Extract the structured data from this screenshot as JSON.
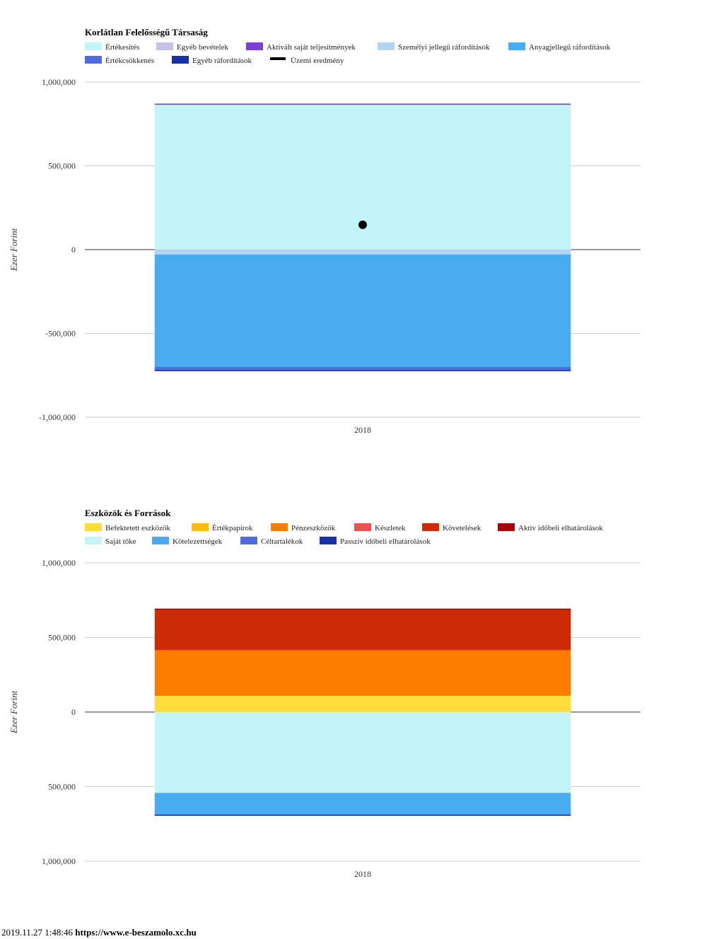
{
  "chart_data": [
    {
      "type": "bar",
      "stacked": true,
      "title": "Korlátlan Felelősségű Társaság",
      "ylabel": "Ezer Forint",
      "categories": [
        "2018"
      ],
      "ylim": [
        -1000000,
        1000000
      ],
      "yticks": [
        1000000,
        500000,
        0,
        -500000,
        -1000000
      ],
      "ytick_labels": [
        "1,000,000",
        "500,000",
        "0",
        "-500,000",
        "-1,000,000"
      ],
      "legend_position": "top",
      "grid": true,
      "series": [
        {
          "name": "Értékesítés",
          "color": "#c2f4f9",
          "values": [
            865000
          ]
        },
        {
          "name": "Egyéb bevételek",
          "color": "#c9c0e8",
          "values": [
            3000
          ]
        },
        {
          "name": "Aktivált saját teljesítmények",
          "color": "#7b3fd1",
          "values": [
            2000
          ]
        },
        {
          "name": "Személyi jellegű ráfordítások",
          "color": "#b3d4f0",
          "values": [
            -30000
          ]
        },
        {
          "name": "Anyagjellegű ráfordítások",
          "color": "#4aacf0",
          "values": [
            -672000
          ]
        },
        {
          "name": "Értékcsökkenés",
          "color": "#4f6be0",
          "values": [
            -18000
          ]
        },
        {
          "name": "Egyéb ráfordítások",
          "color": "#1530a8",
          "values": [
            -2000
          ]
        },
        {
          "name": "Üzemi eredmény",
          "color": "#000000",
          "values": [
            148000
          ],
          "marker": "point"
        }
      ]
    },
    {
      "type": "bar",
      "stacked": true,
      "title": "Eszközök és Források",
      "ylabel": "Ezer Forint",
      "categories": [
        "2018"
      ],
      "ylim": [
        -1000000,
        1000000
      ],
      "yticks": [
        1000000,
        500000,
        0,
        -500000,
        -1000000
      ],
      "ytick_labels": [
        "1,000,000",
        "500,000",
        "0",
        "500,000",
        "1,000,000"
      ],
      "legend_position": "top",
      "grid": true,
      "series": [
        {
          "name": "Befektetett eszközök",
          "color": "#fddc3b",
          "values": [
            110000
          ]
        },
        {
          "name": "Értékpapírok",
          "color": "#fdbb0c",
          "values": [
            0
          ]
        },
        {
          "name": "Pénzeszközök",
          "color": "#fd7d00",
          "values": [
            305000
          ]
        },
        {
          "name": "Készletek",
          "color": "#f04f4f",
          "values": [
            3000
          ]
        },
        {
          "name": "Követelések",
          "color": "#cc2b06",
          "values": [
            272000
          ]
        },
        {
          "name": "Aktív időbeli elhatárolások",
          "color": "#a80008",
          "values": [
            2000
          ]
        },
        {
          "name": "Saját tőke",
          "color": "#c2f4f9",
          "values": [
            -543000
          ]
        },
        {
          "name": "Kötelezettségek",
          "color": "#4aacf0",
          "values": [
            -145000
          ]
        },
        {
          "name": "Céltartalékok",
          "color": "#4f6be0",
          "values": [
            -1500
          ]
        },
        {
          "name": "Passzív időbeli elhatárolások",
          "color": "#1530a8",
          "values": [
            -1500
          ]
        }
      ]
    }
  ],
  "footer": {
    "timestamp": "2019.11.27 1:48:46",
    "url": "https://www.e-beszamolo.xc.hu"
  }
}
